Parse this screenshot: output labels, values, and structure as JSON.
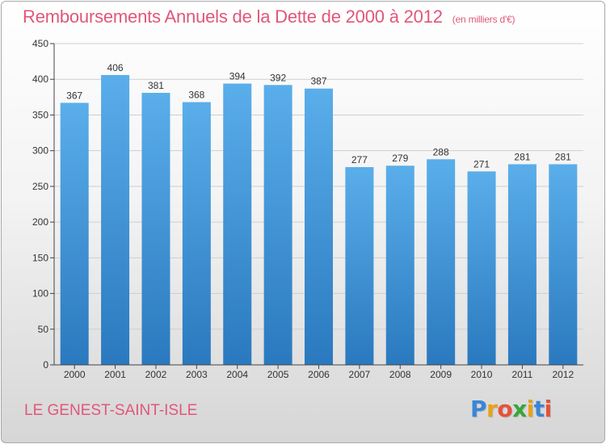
{
  "title": "Remboursements Annuels de la Dette de 2000 à 2012",
  "subtitle": "(en milliers d'€)",
  "footer_label": "LE GENEST-SAINT-ISLE",
  "logo": {
    "text": "Proxiti",
    "letters": [
      {
        "ch": "P",
        "color": "#3a86d6"
      },
      {
        "ch": "r",
        "color": "#e8a21a"
      },
      {
        "ch": "o",
        "color": "#e5513a"
      },
      {
        "ch": "x",
        "color": "#3aa53a"
      },
      {
        "ch": "i",
        "color": "#e8a21a"
      },
      {
        "ch": "t",
        "color": "#3a86d6"
      },
      {
        "ch": "i",
        "color": "#e5513a"
      }
    ]
  },
  "colors": {
    "accent": "#e0577a",
    "bar_top": "#5aaeea",
    "bar_bottom": "#2a79bf",
    "grid": "#cfcfcf",
    "axis": "#444444"
  },
  "chart_data": {
    "type": "bar",
    "categories": [
      "2000",
      "2001",
      "2002",
      "2003",
      "2004",
      "2005",
      "2006",
      "2007",
      "2008",
      "2009",
      "2010",
      "2011",
      "2012"
    ],
    "values": [
      367,
      406,
      381,
      368,
      394,
      392,
      387,
      277,
      279,
      288,
      271,
      281,
      281
    ],
    "title": "Remboursements Annuels de la Dette de 2000 à 2012",
    "xlabel": "",
    "ylabel": "",
    "ylim": [
      0,
      450
    ],
    "yticks": [
      0,
      50,
      100,
      150,
      200,
      250,
      300,
      350,
      400,
      450
    ],
    "grid": true,
    "legend": "none"
  }
}
